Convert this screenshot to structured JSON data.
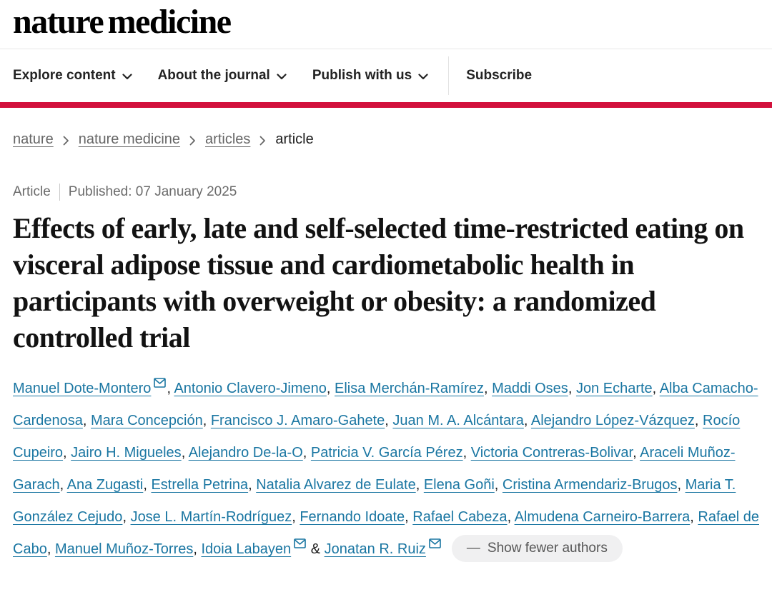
{
  "brand": {
    "logo_text": "nature medicine",
    "accent_red": "#d2113c",
    "link_blue": "#1a76a2"
  },
  "header": {
    "nav_items": [
      {
        "label": "Explore content",
        "dropdown": true
      },
      {
        "label": "About the journal",
        "dropdown": true
      },
      {
        "label": "Publish with us",
        "dropdown": true
      },
      {
        "label": "Subscribe",
        "dropdown": false
      }
    ]
  },
  "breadcrumb": {
    "items": [
      {
        "label": "nature",
        "link": true
      },
      {
        "label": "nature medicine",
        "link": true
      },
      {
        "label": "articles",
        "link": true
      },
      {
        "label": "article",
        "link": false
      }
    ]
  },
  "article_meta": {
    "type": "Article",
    "published": "Published: 07 January 2025"
  },
  "article": {
    "title": "Effects of early, late and self-selected time-restricted eating on visceral adipose tissue and cardiometabolic health in participants with overweight or obesity: a randomized controlled trial"
  },
  "authors": {
    "list": [
      {
        "name": "Manuel Dote-Montero",
        "email": true
      },
      {
        "name": "Antonio Clavero-Jimeno"
      },
      {
        "name": "Elisa Merchán-Ramírez"
      },
      {
        "name": "Maddi Oses"
      },
      {
        "name": "Jon Echarte"
      },
      {
        "name": "Alba Camacho-Cardenosa"
      },
      {
        "name": "Mara Concepción"
      },
      {
        "name": "Francisco J. Amaro-Gahete"
      },
      {
        "name": "Juan M. A. Alcántara"
      },
      {
        "name": "Alejandro López-Vázquez"
      },
      {
        "name": "Rocío Cupeiro"
      },
      {
        "name": "Jairo H. Migueles"
      },
      {
        "name": "Alejandro De-la-O"
      },
      {
        "name": "Patricia V. García Pérez"
      },
      {
        "name": "Victoria Contreras-Bolivar"
      },
      {
        "name": "Araceli Muñoz-Garach"
      },
      {
        "name": "Ana Zugasti"
      },
      {
        "name": "Estrella Petrina"
      },
      {
        "name": "Natalia Alvarez de Eulate"
      },
      {
        "name": "Elena Goñi"
      },
      {
        "name": "Cristina Armendariz-Brugos"
      },
      {
        "name": "Maria T. González Cejudo"
      },
      {
        "name": "Jose L. Martín-Rodríguez"
      },
      {
        "name": "Fernando Idoate"
      },
      {
        "name": "Rafael Cabeza"
      },
      {
        "name": "Almudena Carneiro-Barrera"
      },
      {
        "name": "Rafael de Cabo"
      },
      {
        "name": "Manuel Muñoz-Torres"
      },
      {
        "name": "Idoia Labayen",
        "email": true
      },
      {
        "name": "Jonatan R. Ruiz",
        "email": true
      }
    ],
    "comma_separator": ", ",
    "last_separator": " & "
  },
  "show_fewer_button": {
    "dash": "—",
    "label": "Show fewer authors"
  }
}
